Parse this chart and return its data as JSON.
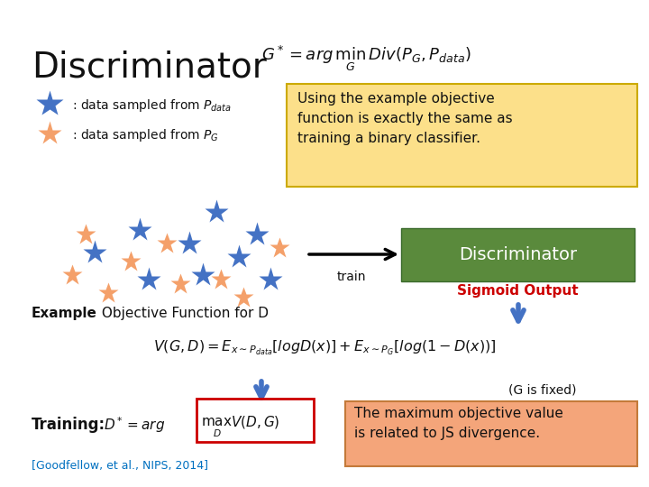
{
  "bg_color": "#ffffff",
  "title_text": "Discriminator",
  "title_formula": "$G^* = arg\\,\\underset{G}{\\min}\\,Div(P_G, P_{data})$",
  "legend_blue_text": ": data sampled from $P_{data}$",
  "legend_orange_text": ": data sampled from $P_G$",
  "yellow_box_text": "Using the example objective\nfunction is exactly the same as\ntraining a binary classifier.",
  "yellow_box_color": "#fce08a",
  "green_box_text": "Discriminator",
  "green_box_color": "#5a8a3c",
  "sigmoid_text": "Sigmoid Output",
  "sigmoid_color": "#cc0000",
  "train_text": "train",
  "example_text_bold": "Example",
  "example_text_rest": " Objective Function for D",
  "formula_vgd": "$V(G,D) = E_{x\\sim P_{data}}[logD(x)] + E_{x\\sim P_G}[log(1-D(x))]$",
  "g_fixed_text": "(G is fixed)",
  "training_label": "Training:",
  "training_formula_pre": "$D^* = arg$",
  "training_formula_box": "$\\underset{D}{\\max}V(D,G)$",
  "red_box_color": "#cc0000",
  "orange_box_text": "The maximum objective value\nis related to JS divergence.",
  "orange_box_color": "#f4a57a",
  "citation_text": "[Goodfellow, et al., NIPS, 2014]",
  "citation_color": "#0070c0",
  "blue_star_color": "#4472c4",
  "orange_star_color": "#f4a06a"
}
